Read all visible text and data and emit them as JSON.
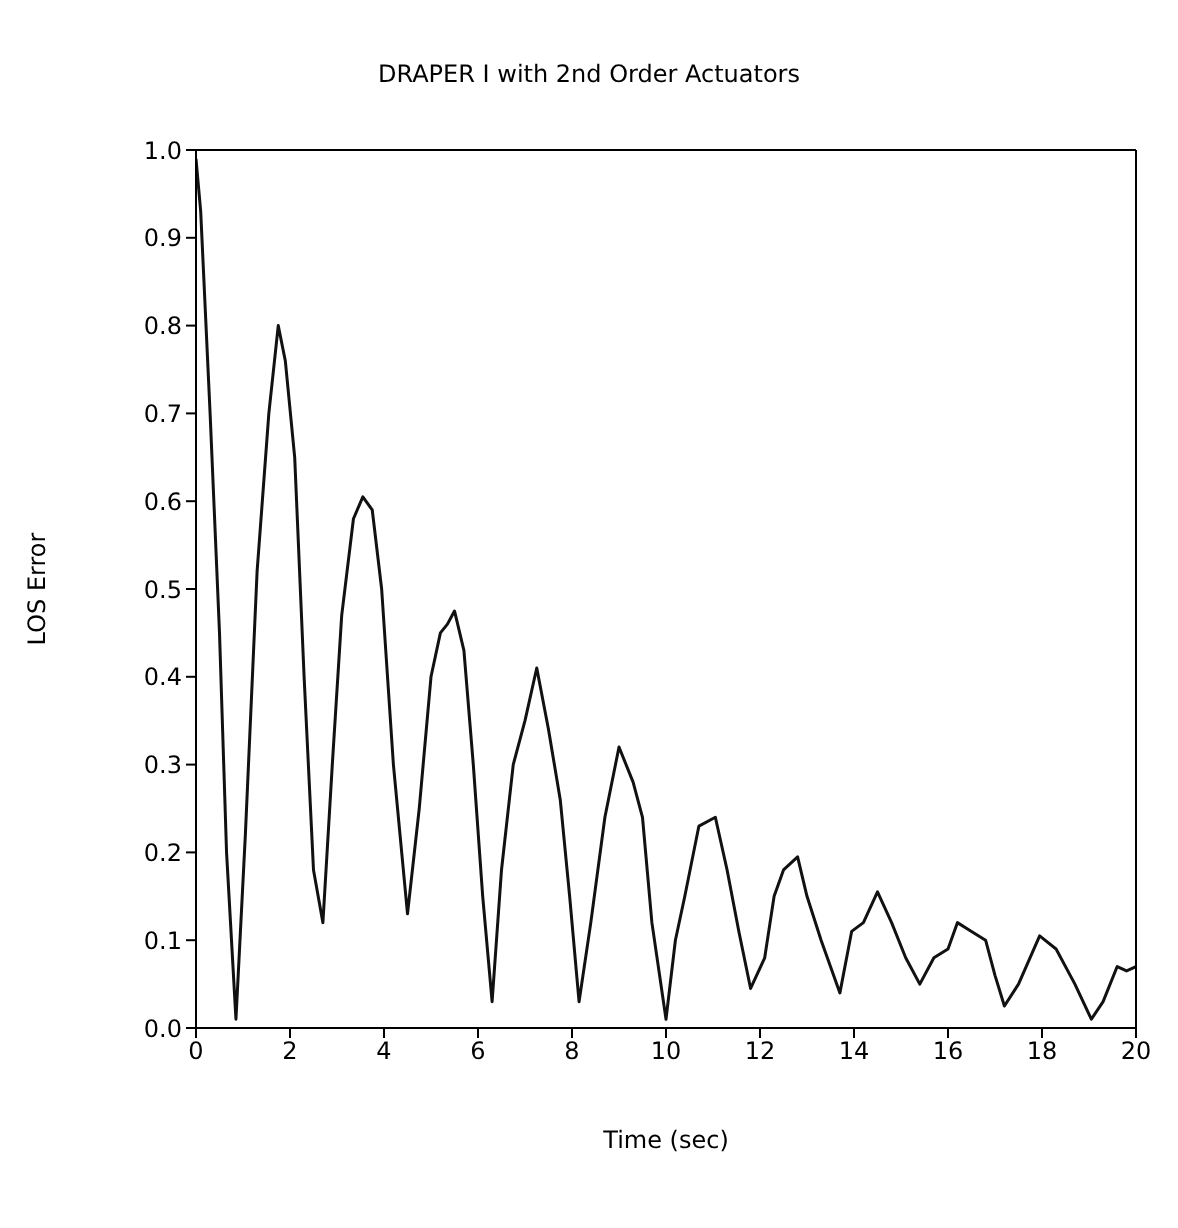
{
  "chart_data": {
    "type": "line",
    "title": "DRAPER I with 2nd Order Actuators",
    "xlabel": "Time (sec)",
    "ylabel": "LOS Error",
    "xlim": [
      0,
      20
    ],
    "ylim": [
      0,
      1
    ],
    "xticks": [
      0,
      2,
      4,
      6,
      8,
      10,
      12,
      14,
      16,
      18,
      20
    ],
    "yticks": [
      {
        "value": 0,
        "label": "0.0"
      },
      0.1,
      0.2,
      0.3,
      0.4,
      0.5,
      0.6,
      0.7,
      0.8,
      0.9,
      {
        "value": 1,
        "label": "1.0"
      }
    ],
    "grid": false,
    "legend": false,
    "marker": "none",
    "line_style": "solid",
    "series": [
      {
        "color": "#111111",
        "x": [
          0,
          0.1,
          0.3,
          0.5,
          0.65,
          0.85,
          1.05,
          1.3,
          1.55,
          1.75,
          1.9,
          2.1,
          2.3,
          2.5,
          2.7,
          2.9,
          3.1,
          3.35,
          3.55,
          3.75,
          3.95,
          4.2,
          4.5,
          4.75,
          5.0,
          5.2,
          5.35,
          5.5,
          5.7,
          5.9,
          6.1,
          6.3,
          6.5,
          6.75,
          7.0,
          7.25,
          7.5,
          7.75,
          7.95,
          8.15,
          8.4,
          8.7,
          9.0,
          9.3,
          9.5,
          9.7,
          10.0,
          10.2,
          10.4,
          10.7,
          11.05,
          11.3,
          11.55,
          11.8,
          12.1,
          12.3,
          12.5,
          12.8,
          13.0,
          13.3,
          13.7,
          13.95,
          14.2,
          14.5,
          14.8,
          15.1,
          15.4,
          15.7,
          16.0,
          16.2,
          16.5,
          16.8,
          17.0,
          17.2,
          17.5,
          17.95,
          18.3,
          18.7,
          19.05,
          19.3,
          19.6,
          19.8,
          20
        ],
        "values": [
          0.99,
          0.93,
          0.7,
          0.45,
          0.2,
          0.01,
          0.22,
          0.52,
          0.7,
          0.8,
          0.76,
          0.65,
          0.4,
          0.18,
          0.12,
          0.3,
          0.47,
          0.58,
          0.605,
          0.59,
          0.5,
          0.3,
          0.13,
          0.25,
          0.4,
          0.45,
          0.46,
          0.475,
          0.43,
          0.3,
          0.15,
          0.03,
          0.18,
          0.3,
          0.35,
          0.41,
          0.34,
          0.26,
          0.15,
          0.03,
          0.12,
          0.24,
          0.32,
          0.28,
          0.24,
          0.12,
          0.01,
          0.1,
          0.15,
          0.23,
          0.24,
          0.18,
          0.11,
          0.045,
          0.08,
          0.15,
          0.18,
          0.195,
          0.15,
          0.1,
          0.04,
          0.11,
          0.12,
          0.155,
          0.12,
          0.08,
          0.05,
          0.08,
          0.09,
          0.12,
          0.11,
          0.1,
          0.06,
          0.025,
          0.05,
          0.105,
          0.09,
          0.05,
          0.01,
          0.03,
          0.07,
          0.065,
          0.07
        ]
      }
    ]
  }
}
